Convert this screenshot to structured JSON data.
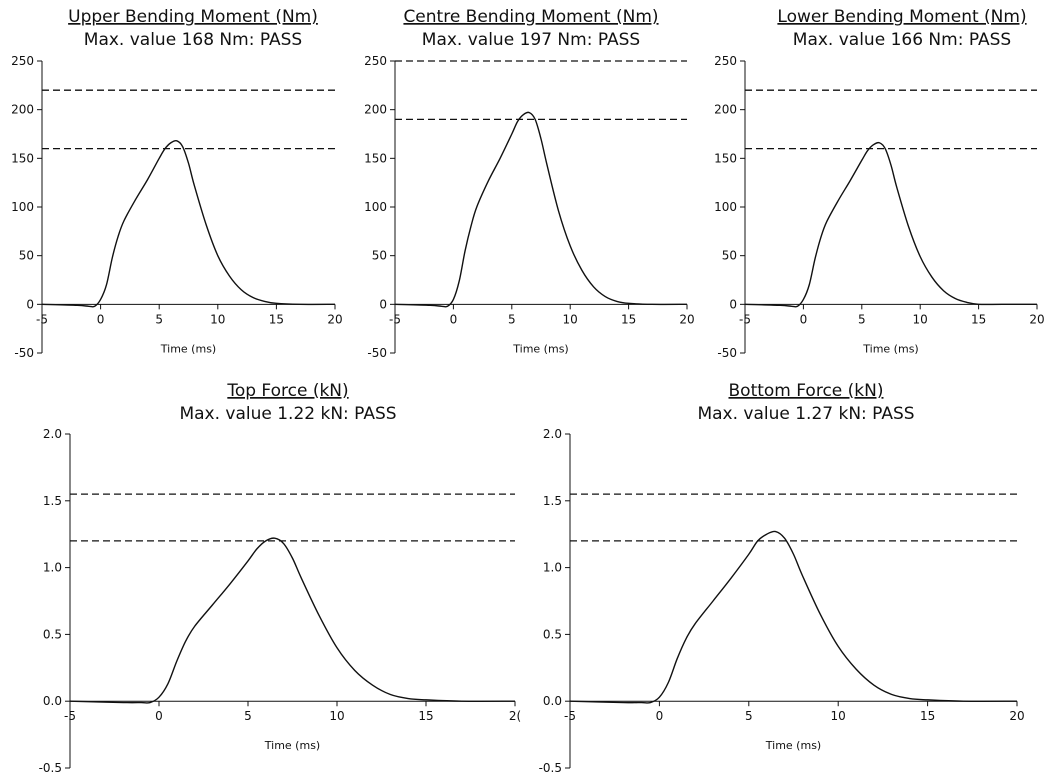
{
  "chart_data": [
    {
      "type": "line",
      "title": "Upper Bending Moment (Nm)",
      "subtitle": "Max. value 168 Nm: PASS",
      "xlabel": "Time (ms)",
      "ylabel": "",
      "xlim": [
        -5,
        20
      ],
      "ylim": [
        -50,
        250
      ],
      "xticks": [
        "-5",
        "0",
        "5",
        "10",
        "15",
        "20"
      ],
      "yticks": [
        "-50",
        "0",
        "50",
        "100",
        "150",
        "200",
        "250"
      ],
      "thresholds": [
        220,
        160
      ],
      "series": [
        {
          "x": [
            -5,
            -2,
            -1,
            -0.5,
            0,
            0.5,
            1,
            1.5,
            2,
            3,
            4,
            5,
            5.5,
            6,
            6.5,
            7,
            7.5,
            8,
            9,
            10,
            11,
            12,
            13,
            14,
            15,
            17,
            20
          ],
          "values": [
            0,
            -1,
            -2,
            -2,
            5,
            20,
            48,
            70,
            86,
            108,
            128,
            150,
            160,
            166,
            168,
            162,
            145,
            122,
            82,
            50,
            29,
            15,
            7,
            3,
            1,
            0,
            0
          ]
        }
      ]
    },
    {
      "type": "line",
      "title": "Centre Bending Moment (Nm)",
      "subtitle": "Max. value 197 Nm: PASS",
      "xlabel": "Time (ms)",
      "ylabel": "",
      "xlim": [
        -5,
        20
      ],
      "ylim": [
        -50,
        250
      ],
      "xticks": [
        "-5",
        "0",
        "5",
        "10",
        "15",
        "20"
      ],
      "yticks": [
        "-50",
        "0",
        "50",
        "100",
        "150",
        "200",
        "250"
      ],
      "thresholds": [
        250,
        190
      ],
      "series": [
        {
          "x": [
            -5,
            -2,
            -1,
            -0.5,
            0,
            0.5,
            1,
            1.5,
            2,
            3,
            4,
            5,
            5.5,
            6,
            6.5,
            7,
            7.5,
            8,
            9,
            10,
            11,
            12,
            13,
            14,
            15,
            17,
            20
          ],
          "values": [
            0,
            -1,
            -2,
            -2,
            5,
            24,
            55,
            80,
            100,
            127,
            150,
            175,
            188,
            195,
            197,
            190,
            170,
            144,
            96,
            60,
            35,
            18,
            8,
            3,
            1,
            0,
            0
          ]
        }
      ]
    },
    {
      "type": "line",
      "title": "Lower Bending Moment (Nm)",
      "subtitle": "Max. value 166 Nm: PASS",
      "xlabel": "Time (ms)",
      "ylabel": "",
      "xlim": [
        -5,
        20
      ],
      "ylim": [
        -50,
        250
      ],
      "xticks": [
        "-5",
        "0",
        "5",
        "10",
        "15",
        "20"
      ],
      "yticks": [
        "-50",
        "0",
        "50",
        "100",
        "150",
        "200",
        "250"
      ],
      "thresholds": [
        220,
        160
      ],
      "series": [
        {
          "x": [
            -5,
            -2,
            -1,
            -0.5,
            0,
            0.5,
            1,
            1.5,
            2,
            3,
            4,
            5,
            5.5,
            6,
            6.5,
            7,
            7.5,
            8,
            9,
            10,
            11,
            12,
            13,
            14,
            15,
            17,
            20
          ],
          "values": [
            0,
            -1,
            -2,
            -2,
            5,
            20,
            47,
            69,
            85,
            107,
            127,
            148,
            158,
            164,
            166,
            160,
            143,
            120,
            80,
            49,
            28,
            14,
            6,
            2,
            0,
            0,
            0
          ]
        }
      ]
    },
    {
      "type": "line",
      "title": "Top Force (kN)",
      "subtitle": "Max. value 1.22 kN: PASS",
      "xlabel": "Time (ms)",
      "ylabel": "",
      "xlim": [
        -5,
        20
      ],
      "ylim": [
        -0.5,
        2.0
      ],
      "xticks": [
        "-5",
        "0",
        "5",
        "10",
        "15",
        "2("
      ],
      "yticks": [
        "-0.5",
        "0.0",
        "0.5",
        "1.0",
        "1.5",
        "2.0"
      ],
      "thresholds": [
        1.55,
        1.2
      ],
      "series": [
        {
          "x": [
            -5,
            -2,
            -1,
            -0.5,
            0,
            0.5,
            1,
            1.5,
            2,
            3,
            4,
            5,
            5.5,
            6,
            6.5,
            7,
            7.5,
            8,
            9,
            10,
            11,
            12,
            13,
            14,
            15,
            17,
            20
          ],
          "values": [
            0,
            -0.01,
            -0.01,
            -0.01,
            0.03,
            0.13,
            0.3,
            0.45,
            0.56,
            0.72,
            0.88,
            1.05,
            1.14,
            1.2,
            1.22,
            1.18,
            1.07,
            0.92,
            0.64,
            0.4,
            0.23,
            0.12,
            0.05,
            0.02,
            0.01,
            0,
            0
          ]
        }
      ]
    },
    {
      "type": "line",
      "title": "Bottom Force (kN)",
      "subtitle": "Max. value 1.27 kN: PASS",
      "xlabel": "Time (ms)",
      "ylabel": "",
      "xlim": [
        -5,
        20
      ],
      "ylim": [
        -0.5,
        2.0
      ],
      "xticks": [
        "-5",
        "0",
        "5",
        "10",
        "15",
        "20"
      ],
      "yticks": [
        "-0.5",
        "0.0",
        "0.5",
        "1.0",
        "1.5",
        "2.0"
      ],
      "thresholds": [
        1.55,
        1.2
      ],
      "series": [
        {
          "x": [
            -5,
            -2,
            -1,
            -0.5,
            0,
            0.5,
            1,
            1.5,
            2,
            3,
            4,
            5,
            5.5,
            6,
            6.5,
            7,
            7.5,
            8,
            9,
            10,
            11,
            12,
            13,
            14,
            15,
            17,
            20
          ],
          "values": [
            0,
            -0.01,
            -0.01,
            -0.01,
            0.03,
            0.14,
            0.32,
            0.47,
            0.58,
            0.75,
            0.92,
            1.1,
            1.2,
            1.25,
            1.27,
            1.22,
            1.1,
            0.94,
            0.65,
            0.41,
            0.24,
            0.12,
            0.05,
            0.02,
            0.01,
            0,
            0
          ]
        }
      ]
    }
  ]
}
